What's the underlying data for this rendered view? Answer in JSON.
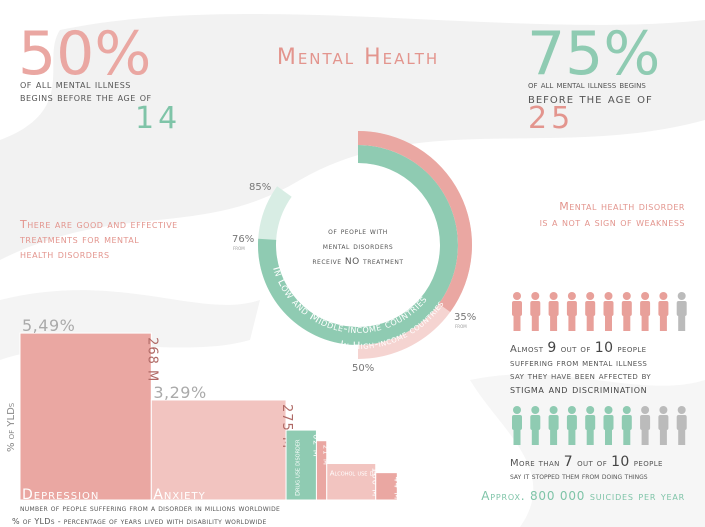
{
  "title": "Mental Health",
  "left_stat": {
    "value": "50%",
    "lines": [
      "of all mental illness",
      "begins before the age of"
    ],
    "age": "14"
  },
  "right_stat": {
    "value": "75%",
    "lines": [
      "of all mental illness begins",
      "before the age of"
    ],
    "age": "25"
  },
  "left_note": [
    "There are good and effective",
    "treatments for mental",
    "health disorders"
  ],
  "right_note": [
    "Mental health disorder",
    "is a not a sign of weakness"
  ],
  "donut": {
    "center": [
      "of people with",
      "mental disorders",
      "receive NO treatment"
    ],
    "from_label": "from",
    "rings": [
      {
        "name": "In Low and Middle-income countries",
        "color": "#8fcbb2",
        "light_color": "#d8ede4",
        "low": {
          "value": 76,
          "label": "76%"
        },
        "high": {
          "value": 85,
          "label": "85%"
        }
      },
      {
        "name": "In High-income countries",
        "color": "#eaa7a2",
        "light_color": "#f5d4d1",
        "low": {
          "value": 35,
          "label": "35%"
        },
        "high": {
          "value": 50,
          "label": "50%"
        }
      }
    ]
  },
  "stigma": {
    "before": "Almost",
    "count": 9,
    "mid": "out of",
    "total": 10,
    "after": "people",
    "lines": [
      "suffering from mental illness",
      "say they have been affected by"
    ],
    "emphasis": "stigma and discrimination"
  },
  "stopped": {
    "before": "More than",
    "count": 7,
    "mid": "out of",
    "total": 10,
    "after": "people",
    "line": "say it stopped them from doing things"
  },
  "suicides": "Approx. 800 000 suicides per year",
  "bars": {
    "y_label": "% of YLDs",
    "items": [
      {
        "name": "Depression",
        "people": {
          "value": 268,
          "label": "268 M"
        },
        "yld": {
          "value": 5.49,
          "label": "5,49%"
        }
      },
      {
        "name": "Anxiety",
        "people": {
          "value": 275,
          "label": "275 M"
        },
        "yld": {
          "value": 3.29,
          "label": "3,29%"
        }
      },
      {
        "name": "Drug use disorder",
        "people": {
          "value": 62,
          "label": "62 M"
        },
        "yld": {
          "value": 2.3
        }
      },
      {
        "people": {
          "value": 21,
          "label": "21 M"
        },
        "yld": {
          "value": 1.95
        }
      },
      {
        "name": "Alcohol use disorder",
        "people": {
          "value": 100,
          "label": "100 M"
        },
        "yld": {
          "value": 1.2
        }
      },
      {
        "people": {
          "value": 44,
          "label": "44 M"
        },
        "yld": {
          "value": 0.9
        }
      }
    ],
    "caption": "number of people suffering from a disorder in millions worldwide",
    "footnote": "% of YLDs - percentage of years lived with disability worldwide"
  }
}
